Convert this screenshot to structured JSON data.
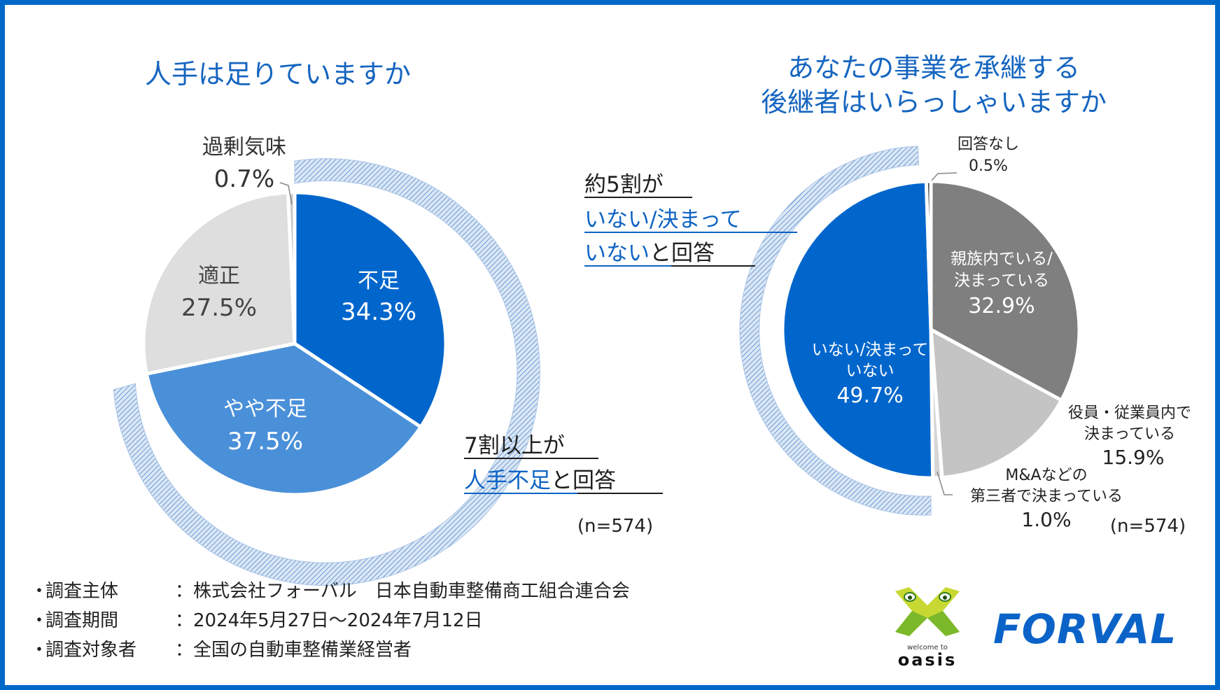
{
  "left": {
    "title": "人手は足りていますか",
    "summary": {
      "line1": "7割以上が",
      "line2_hl": "人手不足",
      "line2_rest": "と回答"
    },
    "n": "(n=574)"
  },
  "right": {
    "title_line1": "あなたの事業を承継する",
    "title_line2": "後継者はいらっしゃいますか",
    "summary": {
      "line1": "約5割が",
      "line2_hl": "いない/決まって",
      "line3_hl": "いない",
      "line3_rest": "と回答"
    },
    "n": "(n=574)"
  },
  "chart_data": [
    {
      "type": "pie",
      "title": "人手は足りていますか",
      "start": "12 o'clock, clockwise",
      "slices": [
        {
          "label": "不足",
          "value": 34.3,
          "pct": "34.3%",
          "color": "#0066cc"
        },
        {
          "label": "やや不足",
          "value": 37.5,
          "pct": "37.5%",
          "color": "#4a90d9"
        },
        {
          "label": "適正",
          "value": 27.5,
          "pct": "27.5%",
          "color": "#dedede"
        },
        {
          "label": "過剰気味",
          "value": 0.7,
          "pct": "0.7%",
          "color": "#c8c8c8"
        }
      ]
    },
    {
      "type": "pie",
      "title": "あなたの事業を承継する後継者はいらっしゃいますか",
      "start": "12 o'clock, clockwise",
      "slices": [
        {
          "label": "親族内でいる/決まっている",
          "value": 32.9,
          "pct": "32.9%",
          "color": "#7f7f7f"
        },
        {
          "label": "役員・従業員内で決まっている",
          "value": 15.9,
          "pct": "15.9%",
          "color": "#c4c4c4"
        },
        {
          "label": "M&Aなどの第三者で決まっている",
          "value": 1.0,
          "pct": "1.0%",
          "color": "#d6d6d6"
        },
        {
          "label": "いない/決まっていない",
          "value": 49.7,
          "pct": "49.7%",
          "color": "#0066cc"
        },
        {
          "label": "回答なし",
          "value": 0.5,
          "pct": "0.5%",
          "color": "#333333"
        }
      ]
    }
  ],
  "labels": {
    "fusoku": "不足",
    "yaya": "やや不足",
    "tekisei": "適正",
    "kajo": "過剰気味",
    "shinzoku_1": "親族内でいる/",
    "shinzoku_2": "決まっている",
    "yakuin_1": "役員・従業員内で",
    "yakuin_2": "決まっている",
    "ma_1": "M&Aなどの",
    "ma_2": "第三者で決まっている",
    "inai_1": "いない/決まって",
    "inai_2": "いない",
    "nashi": "回答なし"
  },
  "footer": {
    "rows": [
      {
        "bullet": "・",
        "label": "調査主体",
        "value": "：株式会社フォーバル　日本自動車整備商工組合連合会"
      },
      {
        "bullet": "・",
        "label": "調査期間",
        "value": "：2024年5月27日～2024年7月12日"
      },
      {
        "bullet": "・",
        "label": "調査対象者",
        "value": "：全国の自動車整備業経営者"
      }
    ]
  },
  "logos": {
    "oasis_small": "welcome to",
    "oasis": "oasis",
    "forval": "FORVAL"
  },
  "colors": {
    "border": "#0068c9",
    "title": "#1565c0",
    "accent": "#0e63c4"
  }
}
